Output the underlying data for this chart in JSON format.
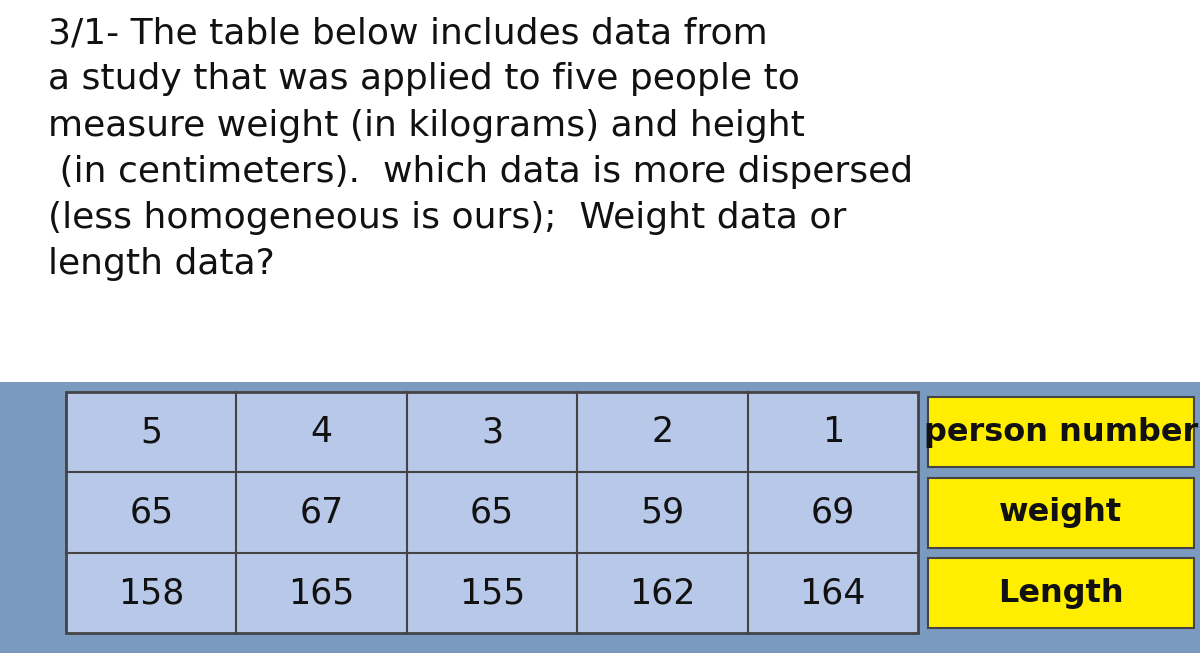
{
  "title_lines": [
    "3/1- The table below includes data from",
    "a study that was applied to five people to",
    "measure weight (in kilograms) and height",
    " (in centimeters).  which data is more dispersed",
    "(less homogeneous is ours);  Weight data or",
    "length data?"
  ],
  "title_fontsize": 26,
  "title_color": "#111111",
  "title_bg": "#ffffff",
  "table_bg": "#b8c8e8",
  "table_border": "#444444",
  "label_bg": "#ffee00",
  "label_text_color": "#111111",
  "label_fontsize": 23,
  "cell_fontsize": 25,
  "cell_text_color": "#111111",
  "row_labels_top_to_bottom": [
    "person number",
    "weight",
    "Length"
  ],
  "person_numbers": [
    "5",
    "4",
    "3",
    "2",
    "1"
  ],
  "weights": [
    "65",
    "67",
    "65",
    "59",
    "69"
  ],
  "lengths": [
    "158",
    "165",
    "155",
    "162",
    "164"
  ],
  "fig_bg": "#7a9abf",
  "text_box_bg": "#ffffff"
}
